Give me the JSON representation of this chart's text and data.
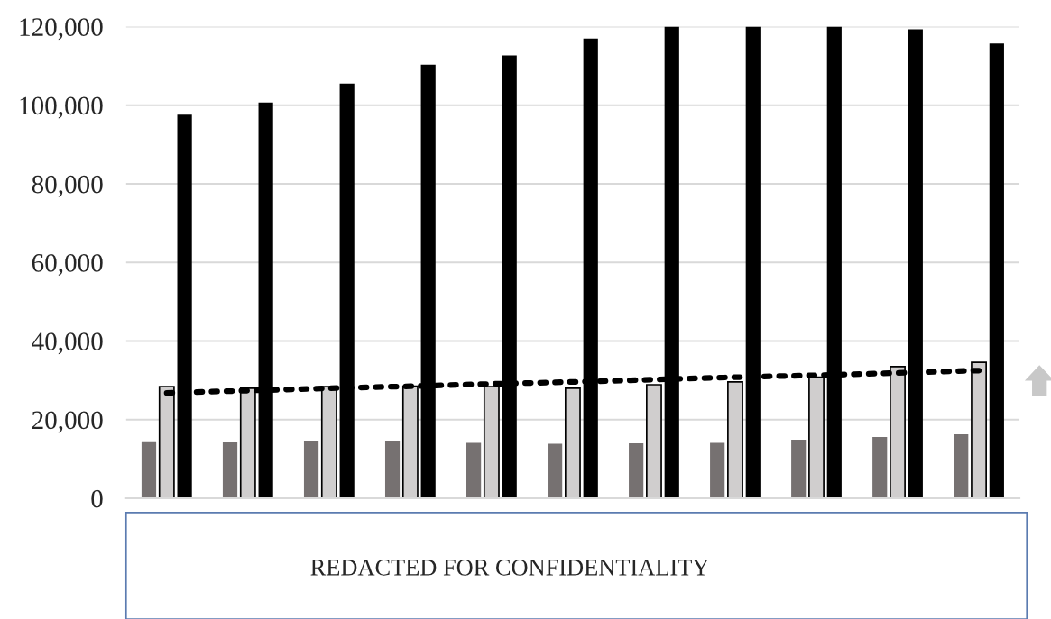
{
  "chart_data": {
    "type": "bar",
    "categories": [
      null,
      null,
      null,
      null,
      null,
      null,
      null,
      null,
      null,
      null,
      null
    ],
    "series": [
      {
        "color": "#767171",
        "values": [
          14300,
          14200,
          14500,
          14500,
          14100,
          13900,
          14000,
          14100,
          14900,
          15600,
          16300
        ]
      },
      {
        "color": "#d0cece",
        "values": [
          28400,
          28000,
          28400,
          28500,
          28400,
          28000,
          28900,
          29600,
          30800,
          33500,
          34600
        ]
      },
      {
        "color": "#000000",
        "values": [
          97600,
          100700,
          105500,
          110300,
          112700,
          117000,
          120000,
          120000,
          120000,
          119300,
          115700
        ]
      },
      {
        "type": "line",
        "color": "#000000",
        "line_style": "dotted",
        "marker": "none",
        "values": [
          26800,
          27400,
          28000,
          28500,
          29100,
          29600,
          30200,
          30800,
          31300,
          31900,
          32500
        ]
      }
    ],
    "ylim": [
      0,
      120000
    ],
    "yticks": [
      {
        "value": 0,
        "label": "0"
      },
      {
        "value": 20000,
        "label": "20,000"
      },
      {
        "value": 40000,
        "label": "40,000"
      },
      {
        "value": 60000,
        "label": "60,000"
      },
      {
        "value": 80000,
        "label": "80,000"
      },
      {
        "value": 100000,
        "label": "100,000"
      },
      {
        "value": 120000,
        "label": "120,000"
      }
    ],
    "grid": "y",
    "annotations": [
      "REDACTED FOR CONFIDENTIALITY"
    ]
  }
}
